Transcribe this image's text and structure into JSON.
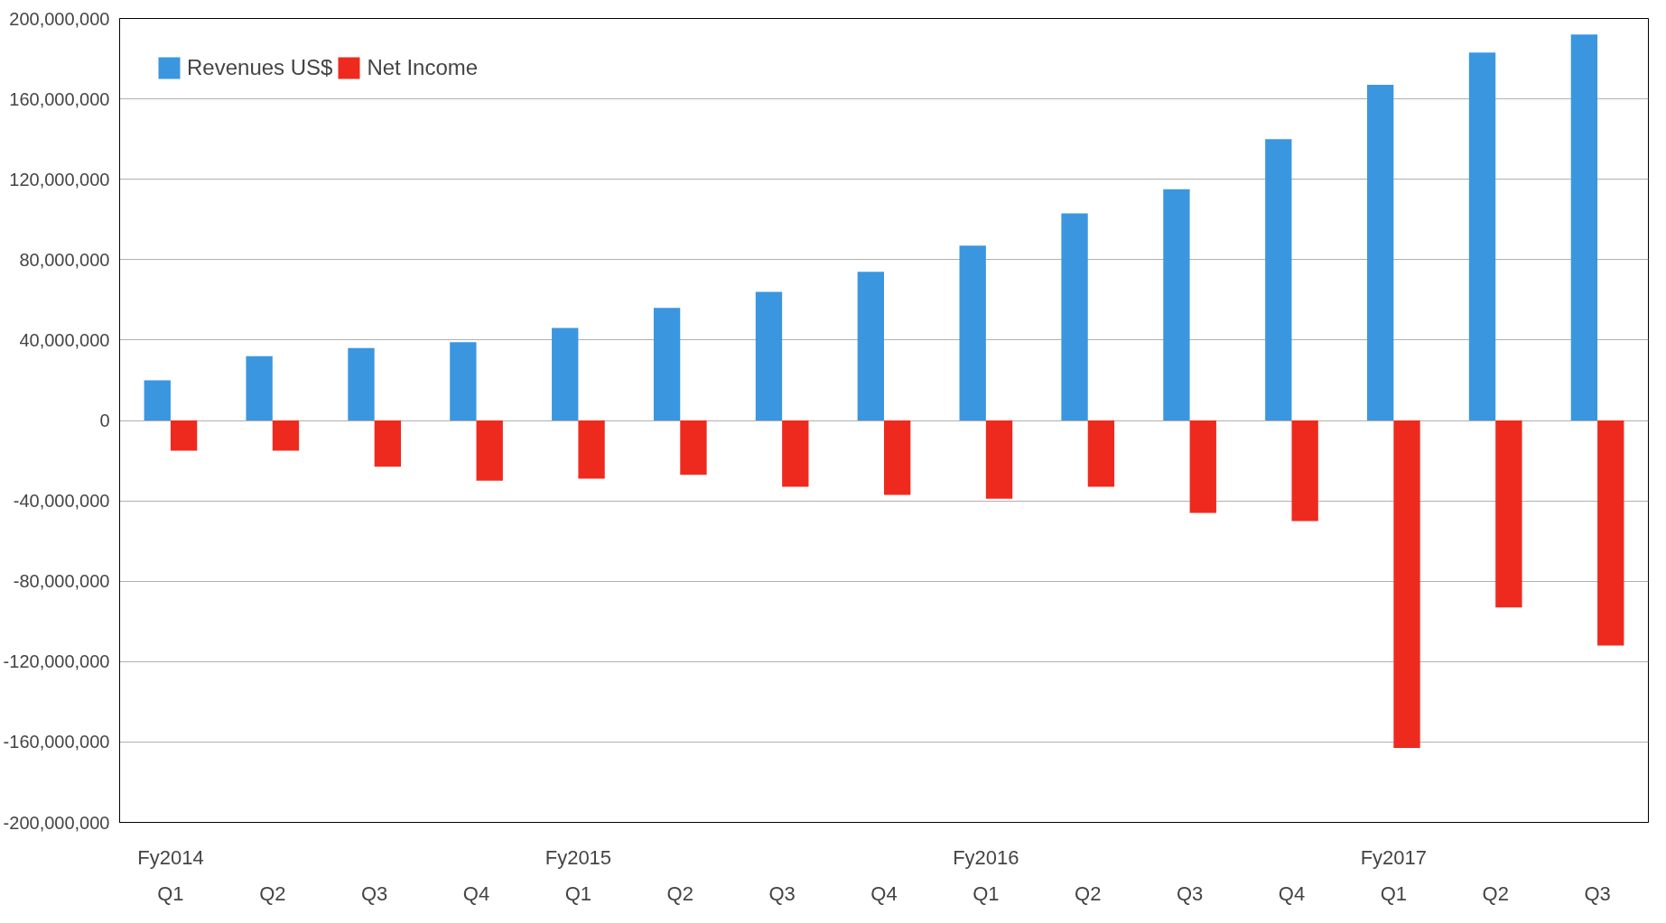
{
  "chart_data": {
    "type": "bar",
    "categories": [
      "Q1",
      "Q2",
      "Q3",
      "Q4",
      "Q1",
      "Q2",
      "Q3",
      "Q4",
      "Q1",
      "Q2",
      "Q3",
      "Q4",
      "Q1",
      "Q2",
      "Q3"
    ],
    "series": [
      {
        "name": "Revenues US$",
        "color": "#3b96e0",
        "values": [
          20000000,
          32000000,
          36000000,
          39000000,
          46000000,
          56000000,
          64000000,
          74000000,
          87000000,
          103000000,
          115000000,
          140000000,
          167000000,
          183000000,
          192000000
        ]
      },
      {
        "name": "Net Income",
        "color": "#ee2a1f",
        "values": [
          -15000000,
          -15000000,
          -23000000,
          -30000000,
          -29000000,
          -27000000,
          -33000000,
          -37000000,
          -39000000,
          -33000000,
          -46000000,
          -50000000,
          -163000000,
          -93000000,
          -112000000
        ]
      }
    ],
    "ylim": [
      -200000000,
      200000000
    ],
    "yticks": [
      {
        "value": -200000000,
        "label": "-200,000,000"
      },
      {
        "value": -160000000,
        "label": "-160,000,000"
      },
      {
        "value": -120000000,
        "label": "-120,000,000"
      },
      {
        "value": -80000000,
        "label": "-80,000,000"
      },
      {
        "value": -40000000,
        "label": "-40,000,000"
      },
      {
        "value": 0,
        "label": "0"
      },
      {
        "value": 40000000,
        "label": "40,000,000"
      },
      {
        "value": 80000000,
        "label": "80,000,000"
      },
      {
        "value": 120000000,
        "label": "120,000,000"
      },
      {
        "value": 160000000,
        "label": "160,000,000"
      },
      {
        "value": 200000000,
        "label": "200,000,000"
      }
    ],
    "grid": "y",
    "legend": "top left",
    "annotations": [
      "Fy2014",
      "Fy2015",
      "Fy2016",
      "Fy2017"
    ]
  }
}
